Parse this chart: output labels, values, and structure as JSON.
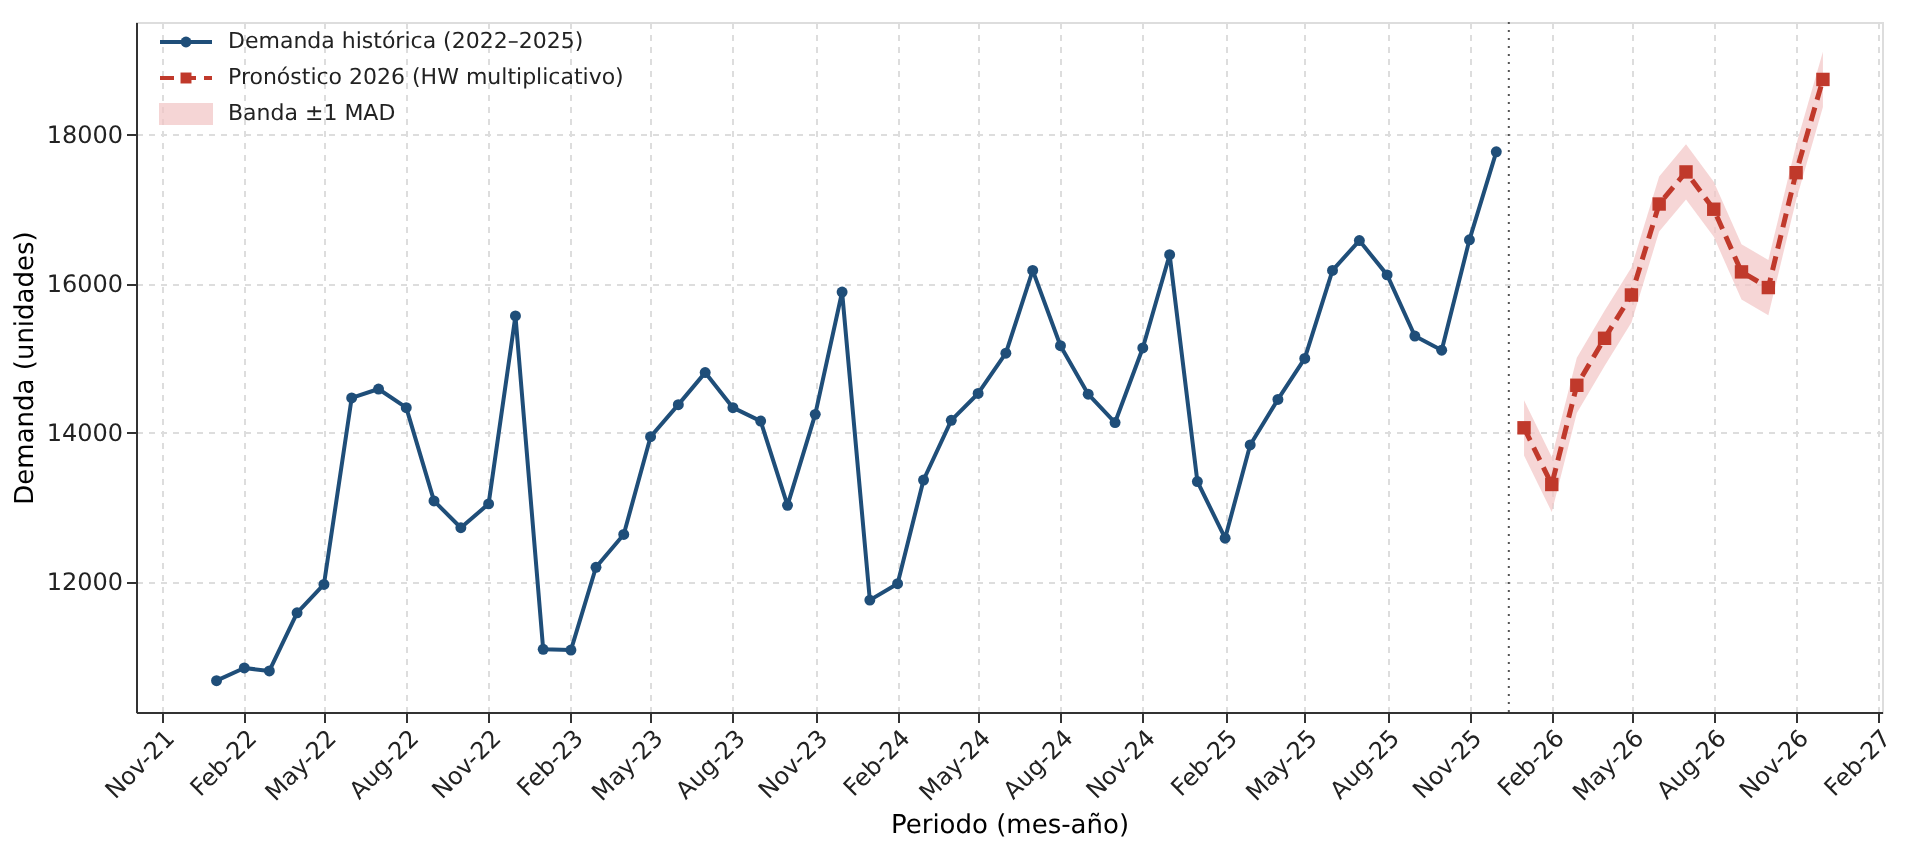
{
  "chart_data": {
    "type": "line",
    "xlabel": "Periodo (mes-año)",
    "ylabel": "Demanda (unidades)",
    "xlim": [
      "2021-10-03",
      "2027-02-05"
    ],
    "ylim": [
      10250,
      19500
    ],
    "yticks": [
      12000,
      14000,
      16000,
      18000
    ],
    "xticks": [
      {
        "value": "2021-11-01",
        "label": "Nov-21"
      },
      {
        "value": "2022-02-01",
        "label": "Feb-22"
      },
      {
        "value": "2022-05-01",
        "label": "May-22"
      },
      {
        "value": "2022-08-01",
        "label": "Aug-22"
      },
      {
        "value": "2022-11-01",
        "label": "Nov-22"
      },
      {
        "value": "2023-02-01",
        "label": "Feb-23"
      },
      {
        "value": "2023-05-01",
        "label": "May-23"
      },
      {
        "value": "2023-08-01",
        "label": "Aug-23"
      },
      {
        "value": "2023-11-01",
        "label": "Nov-23"
      },
      {
        "value": "2024-02-01",
        "label": "Feb-24"
      },
      {
        "value": "2024-05-01",
        "label": "May-24"
      },
      {
        "value": "2024-08-01",
        "label": "Aug-24"
      },
      {
        "value": "2024-11-01",
        "label": "Nov-24"
      },
      {
        "value": "2025-02-01",
        "label": "Feb-25"
      },
      {
        "value": "2025-05-01",
        "label": "May-25"
      },
      {
        "value": "2025-08-01",
        "label": "Aug-25"
      },
      {
        "value": "2025-11-01",
        "label": "Nov-25"
      },
      {
        "value": "2026-02-01",
        "label": "Feb-26"
      },
      {
        "value": "2026-05-01",
        "label": "May-26"
      },
      {
        "value": "2026-08-01",
        "label": "Aug-26"
      },
      {
        "value": "2026-11-01",
        "label": "Nov-26"
      },
      {
        "value": "2027-02-01",
        "label": "Feb-27"
      }
    ],
    "grid": true,
    "legend": "top left",
    "ref_lines": [
      {
        "axis": "x",
        "value": "2025-12-15",
        "color": "#555555",
        "line_style": "dotted"
      }
    ],
    "series": [
      {
        "name": "Demanda histórica (2022–2025)",
        "color": "#1f4e79",
        "marker": "circle",
        "line_style": "solid",
        "x": [
          "2022-01",
          "2022-02",
          "2022-03",
          "2022-04",
          "2022-05",
          "2022-06",
          "2022-07",
          "2022-08",
          "2022-09",
          "2022-10",
          "2022-11",
          "2022-12",
          "2023-01",
          "2023-02",
          "2023-03",
          "2023-04",
          "2023-05",
          "2023-06",
          "2023-07",
          "2023-08",
          "2023-09",
          "2023-10",
          "2023-11",
          "2023-12",
          "2024-01",
          "2024-02",
          "2024-03",
          "2024-04",
          "2024-05",
          "2024-06",
          "2024-07",
          "2024-08",
          "2024-09",
          "2024-10",
          "2024-11",
          "2024-12",
          "2025-01",
          "2025-02",
          "2025-03",
          "2025-04",
          "2025-05",
          "2025-06",
          "2025-07",
          "2025-08",
          "2025-09",
          "2025-10",
          "2025-11",
          "2025-12"
        ],
        "values": [
          10670,
          10840,
          10800,
          11580,
          11960,
          14460,
          14580,
          14330,
          13080,
          12720,
          13040,
          15560,
          11090,
          11080,
          12190,
          12630,
          13940,
          14370,
          14800,
          14330,
          14150,
          13020,
          14240,
          15880,
          11750,
          11970,
          13360,
          14160,
          14520,
          15060,
          16170,
          15160,
          14510,
          14130,
          15130,
          16380,
          13340,
          12580,
          13830,
          14440,
          14990,
          16170,
          16570,
          16110,
          15290,
          15100,
          16580,
          17760
        ]
      },
      {
        "name": "Pronóstico 2026 (HW multiplicativo)",
        "color": "#c0392b",
        "marker": "square",
        "line_style": "dashed",
        "x": [
          "2026-01",
          "2026-02",
          "2026-03",
          "2026-04",
          "2026-05",
          "2026-06",
          "2026-07",
          "2026-08",
          "2026-09",
          "2026-10",
          "2026-11",
          "2026-12"
        ],
        "values": [
          14060,
          13300,
          14630,
          15260,
          15840,
          17060,
          17490,
          16990,
          16150,
          15940,
          17480,
          18730
        ],
        "lower": [
          13690,
          12930,
          14260,
          14890,
          15470,
          16690,
          17120,
          16620,
          15780,
          15570,
          17110,
          18360
        ],
        "upper": [
          14430,
          13670,
          15000,
          15630,
          16210,
          17430,
          17860,
          17360,
          16520,
          16310,
          17850,
          19100
        ]
      },
      {
        "name": "Banda ±1 MAD",
        "type": "area",
        "color": "#f2c4c4"
      }
    ]
  }
}
